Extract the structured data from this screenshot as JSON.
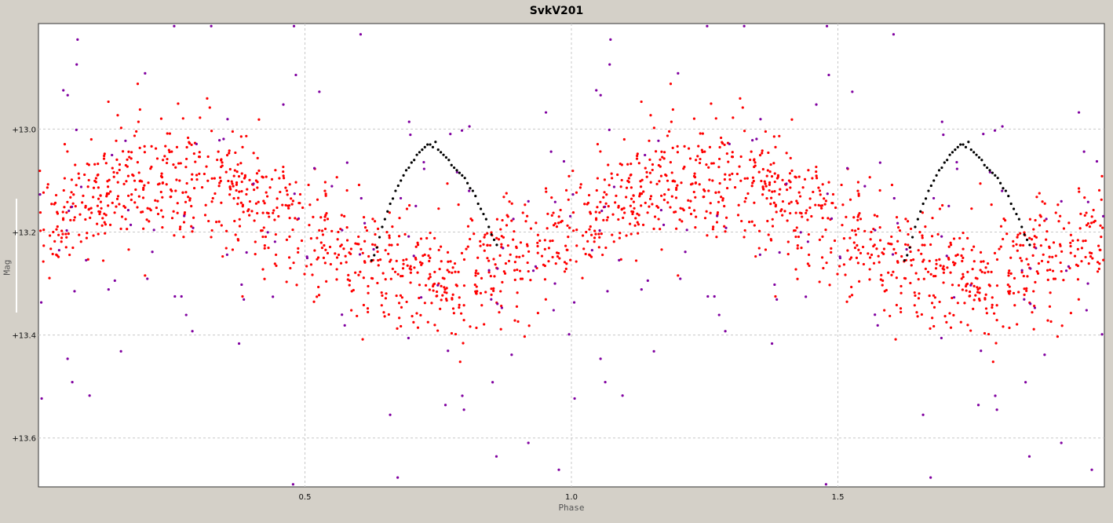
{
  "chart_data": {
    "type": "scatter",
    "title": "SvkV201",
    "xlabel": "Phase",
    "ylabel": "Mag",
    "xlim": [
      0.0,
      2.0
    ],
    "ylim": [
      13.695,
      12.795
    ],
    "y_inverted": true,
    "xticks": [
      0.5,
      1.0,
      1.5
    ],
    "xtick_labels": [
      "0.5",
      "1.0",
      "1.5"
    ],
    "yticks": [
      13.0,
      13.2,
      13.4,
      13.6
    ],
    "ytick_labels": [
      "+13.0",
      "+13.2",
      "+13.4",
      "+13.6"
    ],
    "grid": true,
    "series": [
      {
        "color": "#ff0000",
        "count_per_cycle": 900,
        "model": {
          "mean": 13.19,
          "amplitude": 0.095,
          "peak_phase": 0.25,
          "scatter_sd": 0.06,
          "repeat_period": 1.0
        }
      },
      {
        "color": "#8000a0",
        "count_per_cycle": 115,
        "model": {
          "mean": 13.22,
          "amplitude": 0.09,
          "peak_phase": 0.25,
          "scatter_sd": 0.2,
          "repeat_period": 1.0
        }
      },
      {
        "color": "#000000",
        "repeat_period": 1.0,
        "points": [
          [
            0.625,
            13.255
          ],
          [
            0.63,
            13.245
          ],
          [
            0.635,
            13.23
          ],
          [
            0.64,
            13.21
          ],
          [
            0.645,
            13.19
          ],
          [
            0.65,
            13.175
          ],
          [
            0.655,
            13.16
          ],
          [
            0.66,
            13.145
          ],
          [
            0.665,
            13.135
          ],
          [
            0.67,
            13.12
          ],
          [
            0.675,
            13.11
          ],
          [
            0.68,
            13.1
          ],
          [
            0.685,
            13.09
          ],
          [
            0.69,
            13.08
          ],
          [
            0.695,
            13.075
          ],
          [
            0.7,
            13.065
          ],
          [
            0.705,
            13.06
          ],
          [
            0.71,
            13.05
          ],
          [
            0.715,
            13.045
          ],
          [
            0.72,
            13.04
          ],
          [
            0.725,
            13.035
          ],
          [
            0.73,
            13.03
          ],
          [
            0.735,
            13.03
          ],
          [
            0.74,
            13.035
          ],
          [
            0.745,
            13.025
          ],
          [
            0.75,
            13.04
          ],
          [
            0.755,
            13.045
          ],
          [
            0.76,
            13.05
          ],
          [
            0.765,
            13.055
          ],
          [
            0.77,
            13.06
          ],
          [
            0.775,
            13.07
          ],
          [
            0.78,
            13.075
          ],
          [
            0.785,
            13.08
          ],
          [
            0.79,
            13.085
          ],
          [
            0.795,
            13.09
          ],
          [
            0.8,
            13.095
          ],
          [
            0.805,
            13.105
          ],
          [
            0.81,
            13.115
          ],
          [
            0.815,
            13.12
          ],
          [
            0.82,
            13.13
          ],
          [
            0.825,
            13.145
          ],
          [
            0.83,
            13.155
          ],
          [
            0.835,
            13.165
          ],
          [
            0.84,
            13.175
          ],
          [
            0.845,
            13.19
          ],
          [
            0.85,
            13.205
          ],
          [
            0.855,
            13.215
          ],
          [
            0.86,
            13.225
          ]
        ]
      }
    ]
  }
}
